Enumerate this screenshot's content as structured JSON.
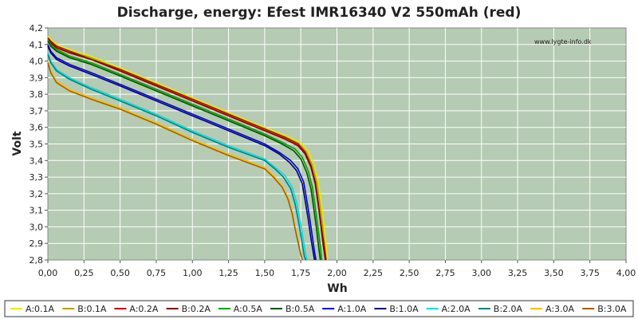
{
  "chart_data": {
    "type": "line",
    "title": "Discharge, energy: Efest IMR16340 V2 550mAh (red)",
    "xlabel": "Wh",
    "ylabel": "Volt",
    "watermark": "www.lygte-info.dk",
    "xlim": [
      0,
      4.0
    ],
    "ylim": [
      2.8,
      4.2
    ],
    "x_ticks": [
      "0,00",
      "0,25",
      "0,50",
      "0,75",
      "1,00",
      "1,25",
      "1,50",
      "1,75",
      "2,00",
      "2,25",
      "2,50",
      "2,75",
      "3,00",
      "3,25",
      "3,50",
      "3,75",
      "4,00"
    ],
    "y_ticks": [
      "2,8",
      "2,9",
      "3,0",
      "3,1",
      "3,2",
      "3,3",
      "3,4",
      "3,5",
      "3,6",
      "3,7",
      "3,8",
      "3,9",
      "4,0",
      "4,1",
      "4,2"
    ],
    "grid": true,
    "legend_position": "bottom",
    "plot_background": "#b5cbb3",
    "series": [
      {
        "name": "A:0.1A",
        "color": "#e8e800",
        "x": [
          0.0,
          0.02,
          0.06,
          0.15,
          0.3,
          0.5,
          0.75,
          1.0,
          1.25,
          1.5,
          1.65,
          1.75,
          1.8,
          1.84,
          1.87,
          1.89,
          1.91,
          1.925,
          1.935
        ],
        "y": [
          4.15,
          4.13,
          4.1,
          4.07,
          4.03,
          3.96,
          3.87,
          3.78,
          3.69,
          3.6,
          3.55,
          3.51,
          3.46,
          3.38,
          3.28,
          3.16,
          3.02,
          2.9,
          2.8
        ]
      },
      {
        "name": "B:0.1A",
        "color": "#b8a000",
        "x": [
          0.0,
          0.02,
          0.06,
          0.15,
          0.3,
          0.5,
          0.75,
          1.0,
          1.25,
          1.5,
          1.65,
          1.74,
          1.79,
          1.83,
          1.86,
          1.88,
          1.9,
          1.915,
          1.925
        ],
        "y": [
          4.14,
          4.12,
          4.09,
          4.06,
          4.02,
          3.95,
          3.86,
          3.77,
          3.68,
          3.59,
          3.54,
          3.5,
          3.45,
          3.37,
          3.27,
          3.15,
          3.01,
          2.89,
          2.8
        ]
      },
      {
        "name": "A:0.2A",
        "color": "#c00000",
        "x": [
          0.0,
          0.02,
          0.06,
          0.15,
          0.3,
          0.5,
          0.75,
          1.0,
          1.25,
          1.5,
          1.64,
          1.73,
          1.78,
          1.82,
          1.85,
          1.87,
          1.89,
          1.91,
          1.925
        ],
        "y": [
          4.14,
          4.12,
          4.09,
          4.06,
          4.01,
          3.95,
          3.86,
          3.77,
          3.68,
          3.59,
          3.54,
          3.5,
          3.45,
          3.37,
          3.27,
          3.15,
          3.01,
          2.89,
          2.8
        ]
      },
      {
        "name": "B:0.2A",
        "color": "#7a0000",
        "x": [
          0.0,
          0.02,
          0.06,
          0.15,
          0.3,
          0.5,
          0.75,
          1.0,
          1.25,
          1.5,
          1.64,
          1.73,
          1.78,
          1.82,
          1.85,
          1.87,
          1.89,
          1.905,
          1.92
        ],
        "y": [
          4.13,
          4.11,
          4.08,
          4.05,
          4.01,
          3.94,
          3.85,
          3.76,
          3.67,
          3.58,
          3.53,
          3.49,
          3.44,
          3.36,
          3.26,
          3.14,
          3.0,
          2.89,
          2.8
        ]
      },
      {
        "name": "A:0.5A",
        "color": "#00a000",
        "x": [
          0.0,
          0.02,
          0.06,
          0.15,
          0.3,
          0.5,
          0.75,
          1.0,
          1.25,
          1.5,
          1.62,
          1.71,
          1.76,
          1.8,
          1.83,
          1.85,
          1.87,
          1.885,
          1.895
        ],
        "y": [
          4.13,
          4.1,
          4.07,
          4.03,
          3.99,
          3.92,
          3.83,
          3.74,
          3.65,
          3.56,
          3.51,
          3.47,
          3.42,
          3.34,
          3.24,
          3.12,
          2.99,
          2.88,
          2.8
        ]
      },
      {
        "name": "B:0.5A",
        "color": "#005000",
        "x": [
          0.0,
          0.02,
          0.06,
          0.15,
          0.3,
          0.5,
          0.75,
          1.0,
          1.25,
          1.5,
          1.62,
          1.7,
          1.75,
          1.79,
          1.82,
          1.84,
          1.86,
          1.875,
          1.885
        ],
        "y": [
          4.12,
          4.09,
          4.06,
          4.02,
          3.98,
          3.91,
          3.82,
          3.73,
          3.64,
          3.55,
          3.5,
          3.46,
          3.41,
          3.33,
          3.23,
          3.11,
          2.98,
          2.87,
          2.8
        ]
      },
      {
        "name": "A:1.0A",
        "color": "#0000e0",
        "x": [
          0.0,
          0.02,
          0.06,
          0.15,
          0.3,
          0.5,
          0.75,
          1.0,
          1.25,
          1.5,
          1.6,
          1.68,
          1.73,
          1.77,
          1.79,
          1.81,
          1.83,
          1.845,
          1.855
        ],
        "y": [
          4.1,
          4.06,
          4.02,
          3.98,
          3.93,
          3.86,
          3.77,
          3.68,
          3.59,
          3.5,
          3.45,
          3.4,
          3.35,
          3.27,
          3.17,
          3.06,
          2.94,
          2.85,
          2.8
        ]
      },
      {
        "name": "B:1.0A",
        "color": "#000070",
        "x": [
          0.0,
          0.02,
          0.06,
          0.15,
          0.3,
          0.5,
          0.75,
          1.0,
          1.25,
          1.5,
          1.6,
          1.67,
          1.72,
          1.76,
          1.78,
          1.8,
          1.82,
          1.835,
          1.845
        ],
        "y": [
          4.09,
          4.05,
          4.01,
          3.97,
          3.92,
          3.85,
          3.76,
          3.67,
          3.58,
          3.49,
          3.44,
          3.39,
          3.34,
          3.26,
          3.16,
          3.05,
          2.93,
          2.85,
          2.8
        ]
      },
      {
        "name": "A:2.0A",
        "color": "#00e0e0",
        "x": [
          0.0,
          0.02,
          0.06,
          0.15,
          0.3,
          0.5,
          0.75,
          1.0,
          1.25,
          1.5,
          1.57,
          1.64,
          1.69,
          1.72,
          1.74,
          1.76,
          1.775,
          1.785,
          1.795
        ],
        "y": [
          4.05,
          4.0,
          3.95,
          3.9,
          3.84,
          3.77,
          3.68,
          3.58,
          3.49,
          3.41,
          3.36,
          3.31,
          3.24,
          3.15,
          3.06,
          2.96,
          2.88,
          2.83,
          2.8
        ]
      },
      {
        "name": "B:2.0A",
        "color": "#008080",
        "x": [
          0.0,
          0.02,
          0.06,
          0.15,
          0.3,
          0.5,
          0.75,
          1.0,
          1.25,
          1.5,
          1.57,
          1.63,
          1.68,
          1.71,
          1.73,
          1.75,
          1.765,
          1.775,
          1.785
        ],
        "y": [
          4.04,
          3.99,
          3.94,
          3.89,
          3.83,
          3.76,
          3.67,
          3.57,
          3.48,
          3.4,
          3.35,
          3.3,
          3.23,
          3.14,
          3.05,
          2.95,
          2.87,
          2.82,
          2.8
        ]
      },
      {
        "name": "A:3.0A",
        "color": "#ffc000",
        "x": [
          0.0,
          0.02,
          0.06,
          0.15,
          0.3,
          0.5,
          0.75,
          1.0,
          1.25,
          1.5,
          1.56,
          1.62,
          1.66,
          1.69,
          1.71,
          1.73,
          1.745,
          1.755,
          1.76
        ],
        "y": [
          4.0,
          3.94,
          3.88,
          3.83,
          3.78,
          3.72,
          3.63,
          3.53,
          3.44,
          3.36,
          3.31,
          3.25,
          3.18,
          3.09,
          3.0,
          2.92,
          2.85,
          2.82,
          2.8
        ]
      },
      {
        "name": "B:3.0A",
        "color": "#a06000",
        "x": [
          0.0,
          0.02,
          0.06,
          0.15,
          0.3,
          0.5,
          0.75,
          1.0,
          1.25,
          1.5,
          1.56,
          1.62,
          1.66,
          1.69,
          1.71,
          1.73,
          1.745,
          1.755,
          1.76
        ],
        "y": [
          3.99,
          3.93,
          3.87,
          3.82,
          3.77,
          3.71,
          3.62,
          3.52,
          3.43,
          3.35,
          3.3,
          3.24,
          3.17,
          3.08,
          2.99,
          2.91,
          2.85,
          2.82,
          2.8
        ]
      }
    ]
  }
}
